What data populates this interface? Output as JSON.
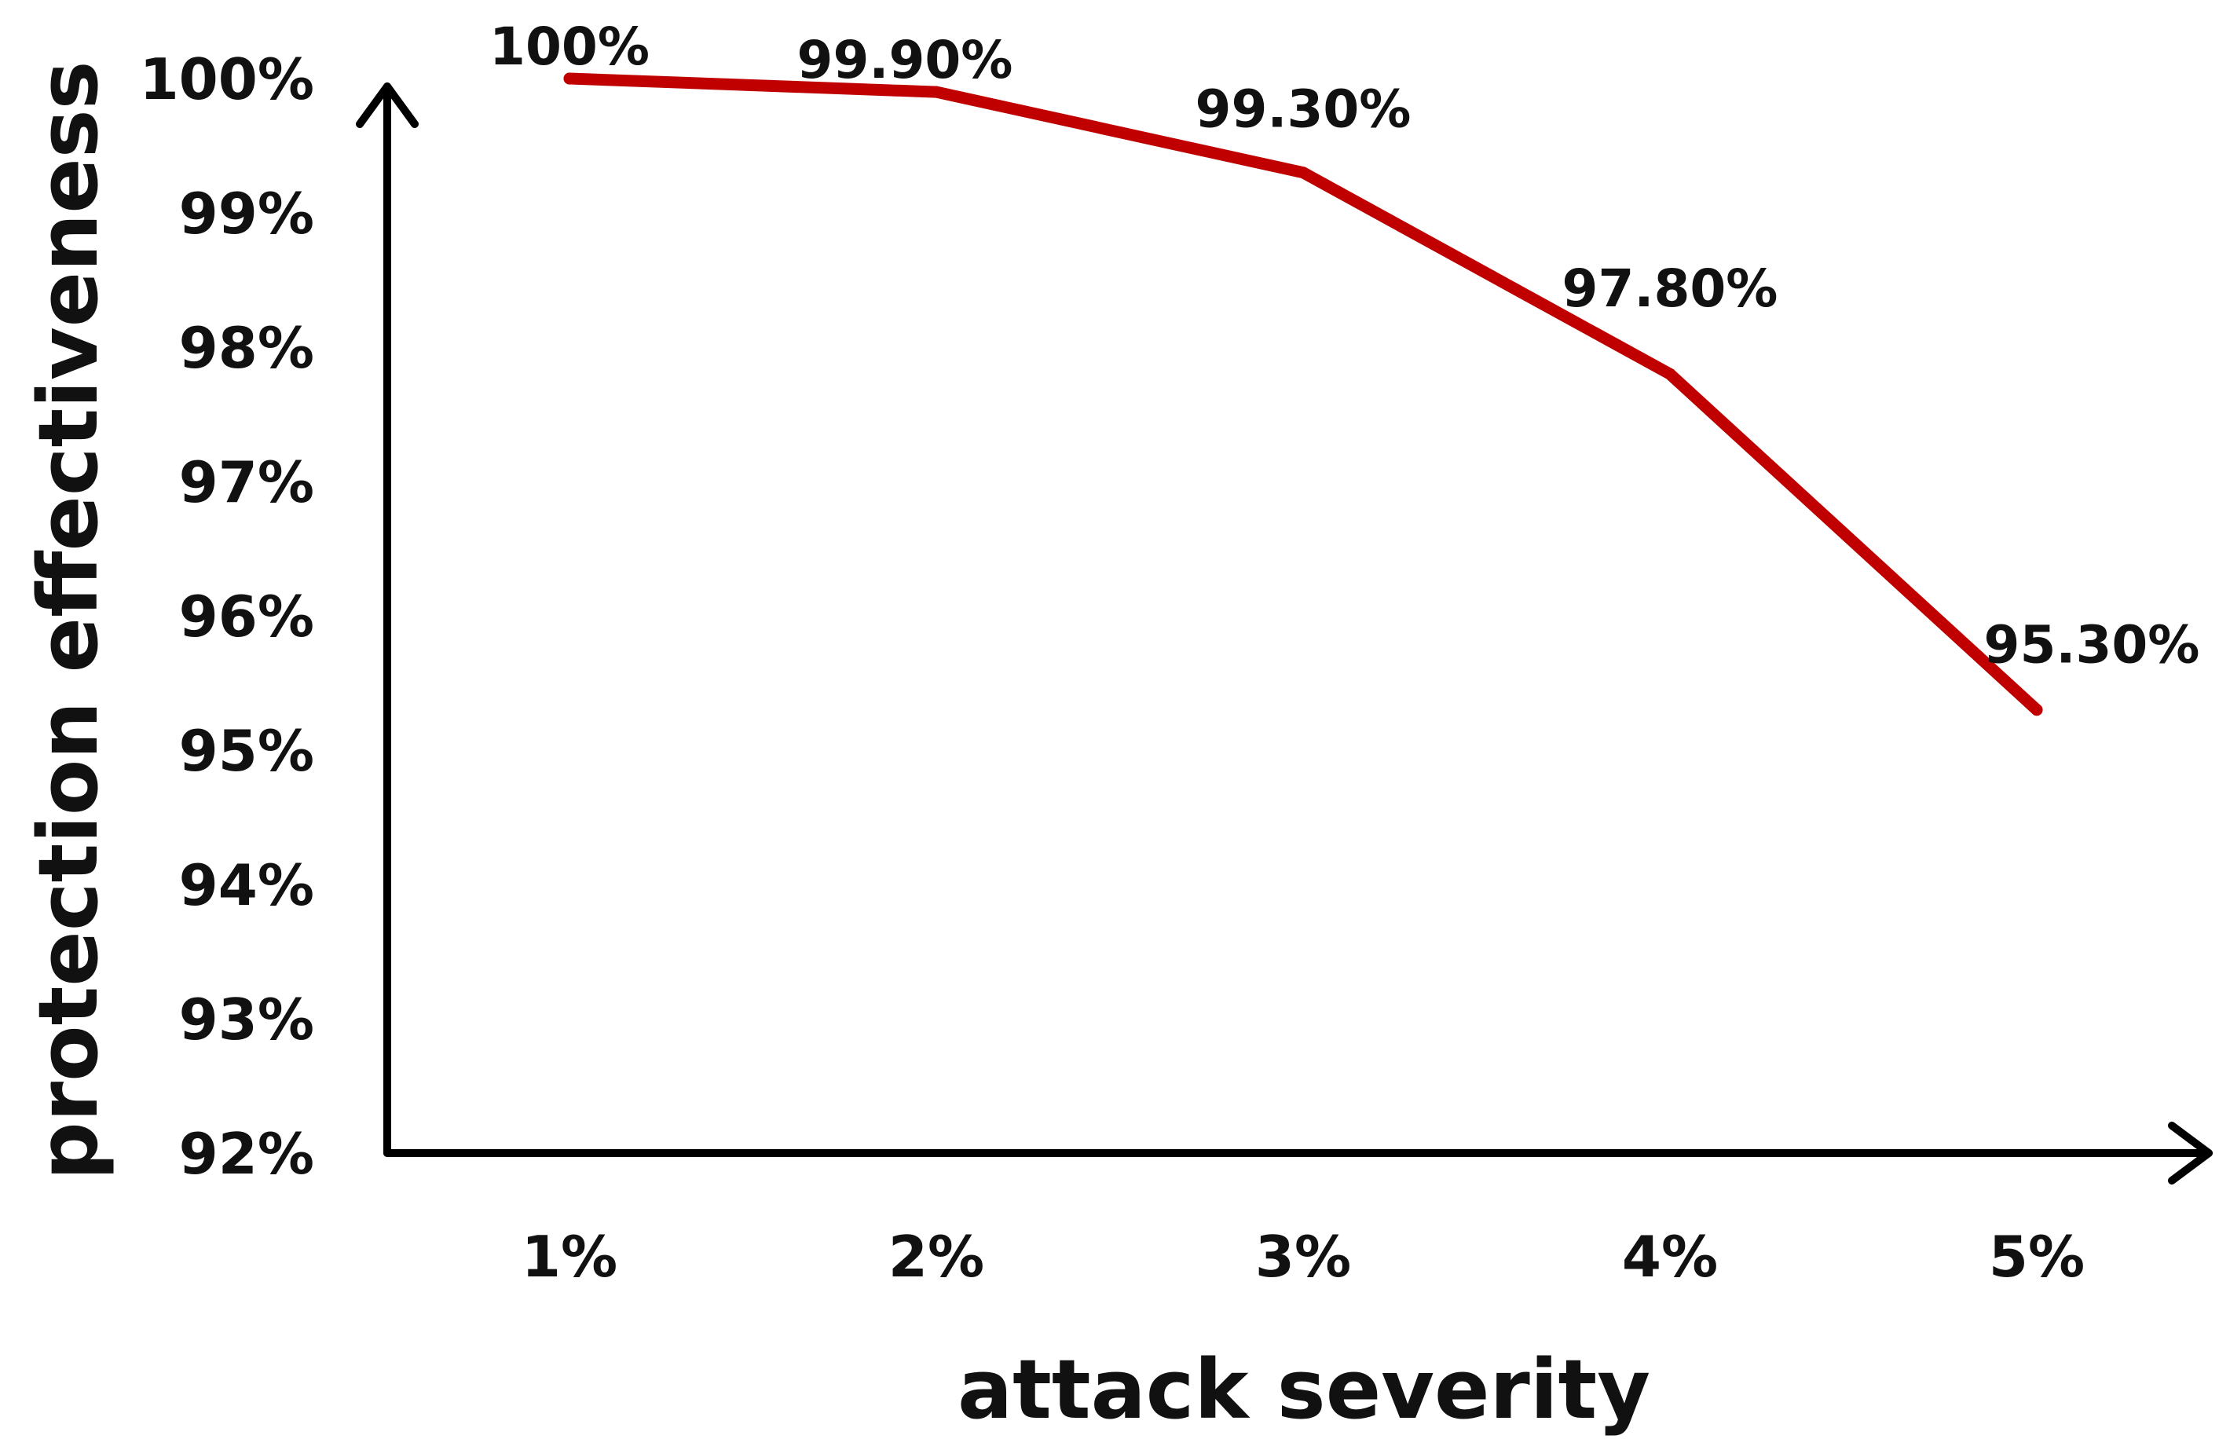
{
  "chart_data": {
    "type": "line",
    "title": "",
    "xlabel": "attack severity",
    "ylabel": "protection effectiveness",
    "categories": [
      "1%",
      "2%",
      "3%",
      "4%",
      "5%"
    ],
    "series": [
      {
        "values": [
          100,
          99.9,
          99.3,
          97.8,
          95.3
        ],
        "data_labels": [
          "100%",
          "99.90%",
          "99.30%",
          "97.80%",
          "95.30%"
        ],
        "color": "#c00000"
      }
    ],
    "ylim": [
      92,
      100
    ],
    "yticks": [
      100,
      99,
      98,
      97,
      96,
      95,
      94,
      93,
      92
    ],
    "ytick_labels": [
      "100%",
      "99%",
      "98%",
      "97%",
      "96%",
      "95%",
      "94%",
      "93%",
      "92%"
    ],
    "grid": false,
    "legend": "none",
    "axis_color": "#000000"
  }
}
